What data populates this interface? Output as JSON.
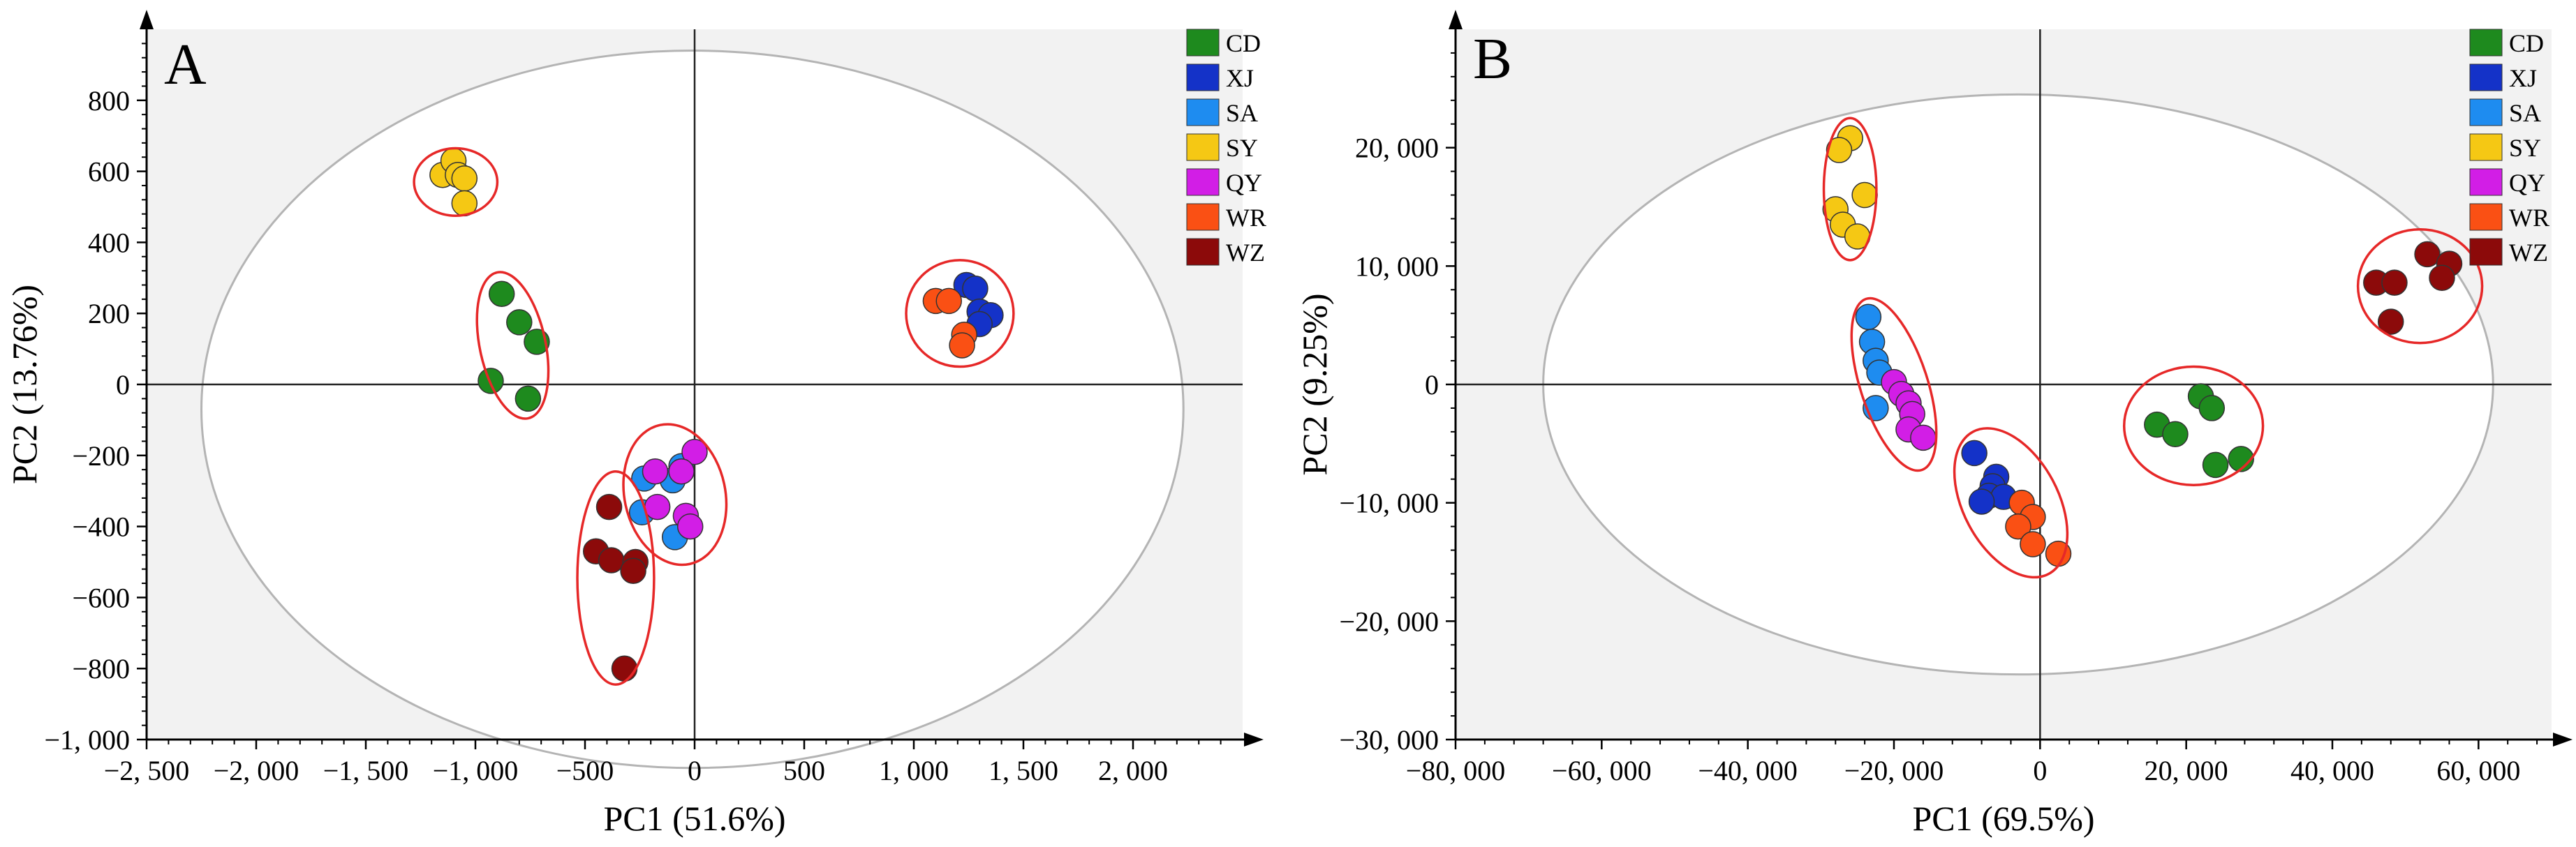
{
  "colors": {
    "CD": "#1e8a1e",
    "XJ": "#1432c8",
    "SA": "#1e8cf0",
    "SY": "#f5c814",
    "QY": "#d21ee6",
    "WR": "#fa5014",
    "WZ": "#8c0a0a",
    "ellipse": "#b4b4b4",
    "cluster_ring": "#e62828",
    "plot_bg": "#f2f2f2"
  },
  "legend": [
    "CD",
    "XJ",
    "SA",
    "SY",
    "QY",
    "WR",
    "WZ"
  ],
  "chart_data": [
    {
      "type": "scatter",
      "panel": "A",
      "xlabel": "PC1 (51.6%)",
      "ylabel": "PC2 (13.76%)",
      "xlim": [
        -2500,
        2500
      ],
      "ylim": [
        -1000,
        1000
      ],
      "xticks": [
        -2500,
        -2000,
        -1500,
        -1000,
        -500,
        0,
        500,
        1000,
        1500,
        2000
      ],
      "xtick_labels": [
        "−2, 500",
        "−2, 000",
        "−1, 500",
        "−1, 000",
        "−500",
        "0",
        "500",
        "1, 000",
        "1, 500",
        "2, 000"
      ],
      "yticks": [
        -1000,
        -800,
        -600,
        -400,
        -200,
        0,
        200,
        400,
        600,
        800
      ],
      "ytick_labels": [
        "−1, 000",
        "−800",
        "−600",
        "−400",
        "−200",
        "0",
        "200",
        "400",
        "600",
        "800"
      ],
      "confidence_ellipse": {
        "cx": -10,
        "cy": -70,
        "rx": 2240,
        "ry": 1010
      },
      "series": [
        {
          "name": "SY",
          "points": [
            [
              -1150,
              590
            ],
            [
              -1100,
              630
            ],
            [
              -1080,
              590
            ],
            [
              -1050,
              580
            ],
            [
              -1050,
              510
            ]
          ]
        },
        {
          "name": "CD",
          "points": [
            [
              -880,
              255
            ],
            [
              -800,
              175
            ],
            [
              -720,
              120
            ],
            [
              -930,
              10
            ],
            [
              -760,
              -40
            ]
          ]
        },
        {
          "name": "XJ",
          "points": [
            [
              1240,
              280
            ],
            [
              1280,
              270
            ],
            [
              1300,
              205
            ],
            [
              1350,
              195
            ],
            [
              1300,
              170
            ]
          ]
        },
        {
          "name": "WR",
          "points": [
            [
              1100,
              235
            ],
            [
              1160,
              235
            ],
            [
              1230,
              140
            ],
            [
              1220,
              110
            ]
          ]
        },
        {
          "name": "SA",
          "points": [
            [
              -60,
              -230
            ],
            [
              -230,
              -265
            ],
            [
              -100,
              -270
            ],
            [
              -240,
              -360
            ],
            [
              -90,
              -430
            ]
          ]
        },
        {
          "name": "QY",
          "points": [
            [
              0,
              -190
            ],
            [
              -180,
              -245
            ],
            [
              -60,
              -245
            ],
            [
              -170,
              -345
            ],
            [
              -40,
              -370
            ],
            [
              -20,
              -400
            ]
          ]
        },
        {
          "name": "WZ",
          "points": [
            [
              -390,
              -345
            ],
            [
              -450,
              -470
            ],
            [
              -380,
              -495
            ],
            [
              -270,
              -500
            ],
            [
              -280,
              -525
            ],
            [
              -320,
              -800
            ]
          ]
        }
      ],
      "clusters": [
        {
          "cx": -1090,
          "cy": 570,
          "rx": 190,
          "ry": 95,
          "angle": 0
        },
        {
          "cx": -830,
          "cy": 110,
          "rx": 150,
          "ry": 210,
          "angle": -12
        },
        {
          "cx": 1210,
          "cy": 200,
          "rx": 245,
          "ry": 150,
          "angle": 0
        },
        {
          "cx": -90,
          "cy": -310,
          "rx": 230,
          "ry": 200,
          "angle": -12
        },
        {
          "cx": -360,
          "cy": -545,
          "rx": 175,
          "ry": 300,
          "angle": 0
        }
      ]
    },
    {
      "type": "scatter",
      "panel": "B",
      "xlabel": "PC1 (69.5%)",
      "ylabel": "PC2 (9.25%)",
      "xlim": [
        -80000,
        70000
      ],
      "ylim": [
        -30000,
        30000
      ],
      "xticks": [
        -80000,
        -60000,
        -40000,
        -20000,
        0,
        20000,
        40000,
        60000
      ],
      "xtick_labels": [
        "−80, 000",
        "−60, 000",
        "−40, 000",
        "−20, 000",
        "0",
        "20, 000",
        "40, 000",
        "60, 000"
      ],
      "yticks": [
        -30000,
        -20000,
        -10000,
        0,
        10000,
        20000
      ],
      "ytick_labels": [
        "−30, 000",
        "−20, 000",
        "−10, 000",
        "0",
        "10, 000",
        "20, 000"
      ],
      "confidence_ellipse": {
        "cx": -3000,
        "cy": 0,
        "rx": 65000,
        "ry": 24500
      },
      "series": [
        {
          "name": "SY",
          "points": [
            [
              -26000,
              20800
            ],
            [
              -27500,
              19800
            ],
            [
              -24000,
              16000
            ],
            [
              -28000,
              14800
            ],
            [
              -27000,
              13500
            ],
            [
              -25000,
              12500
            ]
          ]
        },
        {
          "name": "WZ",
          "points": [
            [
              53000,
              11000
            ],
            [
              56000,
              10200
            ],
            [
              46000,
              8600
            ],
            [
              48500,
              8600
            ],
            [
              55000,
              9000
            ],
            [
              48000,
              5300
            ]
          ]
        },
        {
          "name": "SA",
          "points": [
            [
              -23500,
              5700
            ],
            [
              -23000,
              3600
            ],
            [
              -22500,
              2000
            ],
            [
              -22000,
              1000
            ],
            [
              -22500,
              -2000
            ]
          ]
        },
        {
          "name": "QY",
          "points": [
            [
              -20000,
              200
            ],
            [
              -19000,
              -800
            ],
            [
              -18000,
              -1600
            ],
            [
              -17500,
              -2500
            ],
            [
              -18000,
              -3800
            ],
            [
              -16000,
              -4500
            ]
          ]
        },
        {
          "name": "XJ",
          "points": [
            [
              -9000,
              -5800
            ],
            [
              -6000,
              -7800
            ],
            [
              -6500,
              -8600
            ],
            [
              -7000,
              -9400
            ],
            [
              -5000,
              -9500
            ],
            [
              -8000,
              -9900
            ]
          ]
        },
        {
          "name": "WR",
          "points": [
            [
              -2500,
              -10000
            ],
            [
              -1000,
              -11200
            ],
            [
              -3000,
              -12000
            ],
            [
              -1000,
              -13500
            ],
            [
              2500,
              -14300
            ]
          ]
        },
        {
          "name": "CD",
          "points": [
            [
              22000,
              -1000
            ],
            [
              23500,
              -2000
            ],
            [
              16000,
              -3400
            ],
            [
              18500,
              -4200
            ],
            [
              27500,
              -6300
            ],
            [
              24000,
              -6800
            ]
          ]
        }
      ],
      "clusters": [
        {
          "cx": -26000,
          "cy": 16500,
          "rx": 3600,
          "ry": 6000,
          "angle": 0
        },
        {
          "cx": 52000,
          "cy": 8300,
          "rx": 8500,
          "ry": 4800,
          "angle": 0
        },
        {
          "cx": -20000,
          "cy": 0,
          "rx": 4600,
          "ry": 7600,
          "angle": -18
        },
        {
          "cx": -4000,
          "cy": -10000,
          "rx": 6500,
          "ry": 6800,
          "angle": -28
        },
        {
          "cx": 21000,
          "cy": -3500,
          "rx": 9500,
          "ry": 5000,
          "angle": 0
        }
      ]
    }
  ]
}
